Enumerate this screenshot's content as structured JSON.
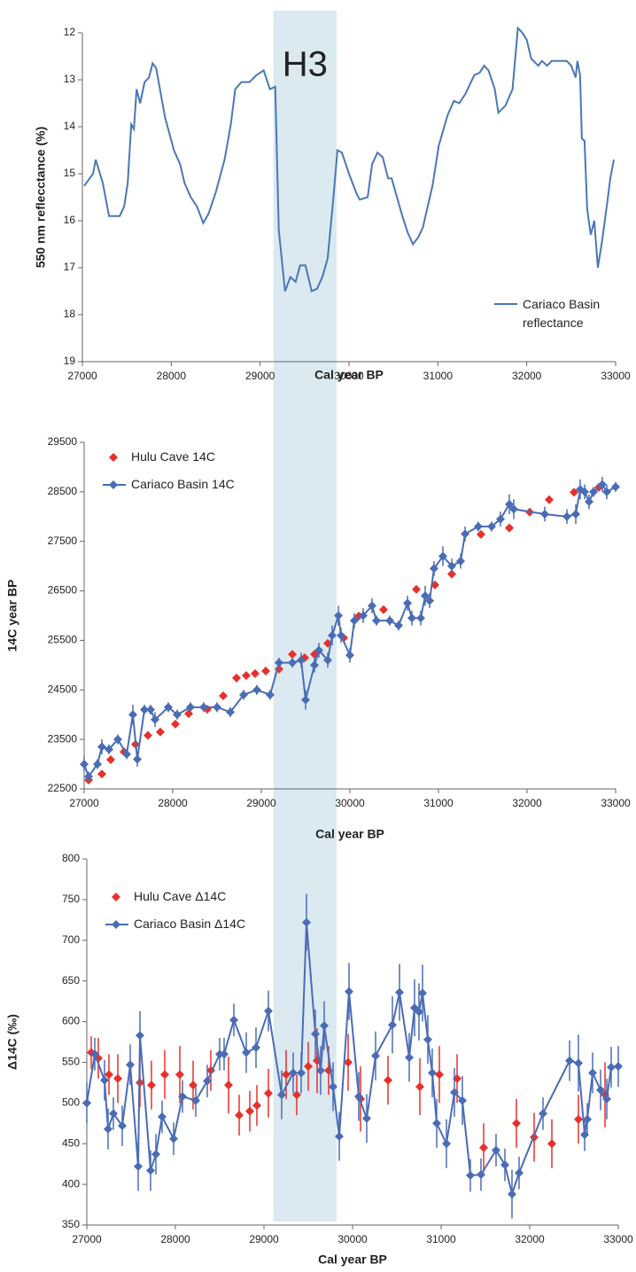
{
  "chart_data": [
    {
      "type": "line",
      "x_label": "Cal year BP",
      "y_label": "550 nm reflecctance (%)",
      "xlim": [
        27000,
        33000
      ],
      "xticks": [
        27000,
        28000,
        29000,
        30000,
        31000,
        32000,
        33000
      ],
      "ylim": [
        19,
        12
      ],
      "yticks": [
        12,
        13,
        14,
        15,
        16,
        17,
        18,
        19
      ],
      "highlight": {
        "label": "H3",
        "range": [
          29150,
          29860
        ],
        "color": "#dbe9f1"
      },
      "legend": "lower right",
      "series": [
        {
          "name": "Cariaco Basin reflectance",
          "color": "#4a78b5",
          "line": true,
          "x": [
            27020,
            27120,
            27150,
            27230,
            27300,
            27420,
            27470,
            27510,
            27550,
            27580,
            27610,
            27650,
            27700,
            27750,
            27790,
            27830,
            27930,
            28030,
            28100,
            28150,
            28220,
            28290,
            28360,
            28420,
            28500,
            28600,
            28670,
            28720,
            28790,
            28880,
            28960,
            29040,
            29110,
            29170,
            29210,
            29280,
            29340,
            29400,
            29450,
            29510,
            29580,
            29640,
            29700,
            29760,
            29820,
            29870,
            29920,
            30000,
            30080,
            30120,
            30210,
            30260,
            30320,
            30380,
            30440,
            30480,
            30540,
            30600,
            30660,
            30720,
            30780,
            30830,
            30940,
            31010,
            31110,
            31180,
            31240,
            31310,
            31410,
            31470,
            31520,
            31570,
            31640,
            31680,
            31760,
            31840,
            31900,
            31950,
            32000,
            32050,
            32130,
            32170,
            32230,
            32280,
            32350,
            32450,
            32500,
            32550,
            32570,
            32600,
            32620,
            32650,
            32680,
            32720,
            32760,
            32800,
            32850,
            32910,
            32940,
            32980
          ],
          "values": [
            15.26,
            15.0,
            14.7,
            15.2,
            15.9,
            15.9,
            15.7,
            15.2,
            13.95,
            14.05,
            13.2,
            13.5,
            13.05,
            12.95,
            12.65,
            12.75,
            13.8,
            14.5,
            14.8,
            15.2,
            15.5,
            15.7,
            16.05,
            15.85,
            15.4,
            14.7,
            13.95,
            13.2,
            13.05,
            13.05,
            12.9,
            12.8,
            13.2,
            13.15,
            16.2,
            17.5,
            17.2,
            17.3,
            16.95,
            16.95,
            17.5,
            17.45,
            17.2,
            16.8,
            15.6,
            14.5,
            14.55,
            15.0,
            15.4,
            15.55,
            15.5,
            14.8,
            14.55,
            14.65,
            15.1,
            15.1,
            15.5,
            15.9,
            16.25,
            16.5,
            16.35,
            16.15,
            15.25,
            14.4,
            13.75,
            13.45,
            13.5,
            13.3,
            12.9,
            12.85,
            12.7,
            12.8,
            13.2,
            13.7,
            13.55,
            13.2,
            11.9,
            12.0,
            12.15,
            12.55,
            12.7,
            12.6,
            12.7,
            12.6,
            12.6,
            12.6,
            12.7,
            12.95,
            12.6,
            12.9,
            14.25,
            14.3,
            15.75,
            16.3,
            16.0,
            17.0,
            16.4,
            15.55,
            15.1,
            14.7
          ]
        }
      ]
    },
    {
      "type": "line",
      "x_label": "Cal year BP",
      "y_label": "14C year BP",
      "xlim": [
        27000,
        33000
      ],
      "xticks": [
        27000,
        28000,
        29000,
        30000,
        31000,
        32000,
        33000
      ],
      "ylim": [
        22500,
        29500
      ],
      "yticks": [
        22500,
        23500,
        24500,
        25500,
        26500,
        27500,
        28500,
        29500
      ],
      "legend": "upper left",
      "series": [
        {
          "name": "Hulu Cave 14C",
          "color": "#e8302a",
          "marker": "diamond",
          "line": false,
          "x": [
            27050,
            27200,
            27300,
            27450,
            27580,
            27720,
            27860,
            28030,
            28180,
            28390,
            28570,
            28720,
            28830,
            28930,
            29050,
            29200,
            29350,
            29490,
            29600,
            29750,
            29930,
            30100,
            30380,
            30750,
            30960,
            31150,
            31480,
            31800,
            32030,
            32250,
            32530,
            32810
          ],
          "values": [
            22680,
            22800,
            23090,
            23250,
            23400,
            23580,
            23650,
            23810,
            24020,
            24110,
            24380,
            24740,
            24790,
            24830,
            24880,
            24920,
            25220,
            25150,
            25220,
            25440,
            25550,
            25990,
            26120,
            26530,
            26620,
            26840,
            27640,
            27770,
            28090,
            28340,
            28490,
            28590
          ]
        },
        {
          "name": "Cariaco Basin 14C",
          "color": "#4a6cb5",
          "marker": "diamond",
          "line": true,
          "x": [
            27000,
            27050,
            27150,
            27200,
            27280,
            27380,
            27480,
            27550,
            27600,
            27680,
            27750,
            27800,
            27950,
            28050,
            28200,
            28350,
            28500,
            28650,
            28800,
            28950,
            29100,
            29200,
            29350,
            29450,
            29500,
            29600,
            29650,
            29750,
            29800,
            29870,
            29900,
            30000,
            30050,
            30150,
            30250,
            30300,
            30450,
            30550,
            30650,
            30700,
            30800,
            30850,
            30900,
            30950,
            31050,
            31150,
            31250,
            31300,
            31450,
            31600,
            31700,
            31800,
            31850,
            32200,
            32450,
            32550,
            32600,
            32650,
            32700,
            32750,
            32850,
            32900,
            33000
          ],
          "values": [
            23000,
            22750,
            23000,
            23350,
            23300,
            23500,
            23200,
            24000,
            23100,
            24100,
            24100,
            23900,
            24150,
            24000,
            24150,
            24150,
            24150,
            24050,
            24400,
            24500,
            24400,
            25050,
            25050,
            25100,
            24300,
            25000,
            25300,
            25100,
            25600,
            26000,
            25600,
            25200,
            25900,
            26000,
            26200,
            25900,
            25900,
            25800,
            26250,
            25950,
            25950,
            26400,
            26300,
            26950,
            27200,
            27000,
            27100,
            27650,
            27800,
            27800,
            27950,
            28250,
            28150,
            28050,
            28000,
            28050,
            28550,
            28500,
            28300,
            28500,
            28650,
            28500,
            28600
          ],
          "errors": [
            150,
            100,
            100,
            150,
            100,
            100,
            100,
            200,
            150,
            100,
            100,
            150,
            100,
            100,
            100,
            100,
            100,
            100,
            100,
            100,
            100,
            100,
            100,
            150,
            200,
            150,
            150,
            150,
            200,
            200,
            150,
            150,
            150,
            150,
            150,
            100,
            100,
            100,
            150,
            150,
            150,
            200,
            150,
            150,
            200,
            150,
            150,
            150,
            100,
            100,
            150,
            200,
            200,
            150,
            150,
            200,
            200,
            150,
            150,
            100,
            150,
            150,
            100
          ]
        }
      ]
    },
    {
      "type": "line",
      "x_label": "Cal year BP",
      "y_label": "Δ14C (‰)",
      "xlim": [
        27000,
        33000
      ],
      "xticks": [
        27000,
        28000,
        29000,
        30000,
        31000,
        32000,
        33000
      ],
      "ylim": [
        350,
        800
      ],
      "yticks": [
        350,
        400,
        450,
        500,
        550,
        600,
        650,
        700,
        750,
        800
      ],
      "legend": "upper left",
      "series": [
        {
          "name": "Hulu Cave Δ14C",
          "color": "#e8302a",
          "marker": "diamond",
          "line": false,
          "x": [
            27050,
            27130,
            27250,
            27350,
            27600,
            27730,
            27880,
            28050,
            28200,
            28400,
            28600,
            28720,
            28840,
            28920,
            29050,
            29250,
            29370,
            29500,
            29600,
            29730,
            29950,
            30090,
            30400,
            30760,
            30980,
            31180,
            31480,
            31850,
            32050,
            32250,
            32550,
            32850
          ],
          "values": [
            562,
            555,
            535,
            530,
            525,
            522,
            535,
            535,
            522,
            540,
            522,
            485,
            490,
            497,
            512,
            535,
            510,
            545,
            552,
            540,
            550,
            505,
            528,
            520,
            535,
            530,
            445,
            475,
            458,
            450,
            480,
            510
          ],
          "errors": [
            20,
            25,
            25,
            30,
            30,
            30,
            30,
            35,
            30,
            25,
            35,
            25,
            25,
            25,
            30,
            30,
            25,
            30,
            40,
            30,
            35,
            40,
            30,
            35,
            35,
            30,
            30,
            30,
            30,
            30,
            30,
            40
          ]
        },
        {
          "name": "Cariaco Basin Δ14C",
          "color": "#4a6cb5",
          "marker": "diamond",
          "line": true,
          "x": [
            27000,
            27090,
            27200,
            27240,
            27300,
            27400,
            27490,
            27580,
            27600,
            27720,
            27780,
            27850,
            27980,
            28080,
            28230,
            28360,
            28500,
            28550,
            28660,
            28800,
            28910,
            29050,
            29200,
            29330,
            29420,
            29480,
            29580,
            29640,
            29680,
            29780,
            29850,
            29960,
            30070,
            30160,
            30260,
            30450,
            30530,
            30640,
            30700,
            30750,
            30790,
            30850,
            30900,
            30950,
            31060,
            31150,
            31240,
            31330,
            31450,
            31620,
            31720,
            31800,
            31880,
            32150,
            32450,
            32550,
            32620,
            32650,
            32710,
            32800,
            32870,
            32920,
            33000
          ],
          "values": [
            500,
            560,
            528,
            468,
            487,
            472,
            547,
            422,
            583,
            417,
            437,
            483,
            456,
            508,
            503,
            527,
            560,
            560,
            602,
            562,
            568,
            613,
            510,
            537,
            537,
            722,
            585,
            540,
            595,
            520,
            459,
            637,
            508,
            481,
            558,
            596,
            636,
            556,
            617,
            612,
            635,
            578,
            537,
            475,
            450,
            513,
            503,
            411,
            412,
            442,
            424,
            388,
            414,
            487,
            552,
            549,
            461,
            480,
            537,
            516,
            505,
            544,
            545
          ],
          "errors": [
            25,
            20,
            25,
            25,
            20,
            25,
            25,
            30,
            30,
            25,
            25,
            20,
            20,
            20,
            20,
            20,
            20,
            20,
            20,
            25,
            25,
            25,
            30,
            25,
            25,
            35,
            30,
            30,
            30,
            30,
            30,
            35,
            30,
            30,
            30,
            35,
            35,
            30,
            35,
            35,
            35,
            30,
            30,
            30,
            30,
            30,
            30,
            20,
            20,
            20,
            20,
            30,
            20,
            20,
            25,
            35,
            20,
            20,
            25,
            25,
            25,
            25,
            25
          ]
        }
      ]
    }
  ]
}
